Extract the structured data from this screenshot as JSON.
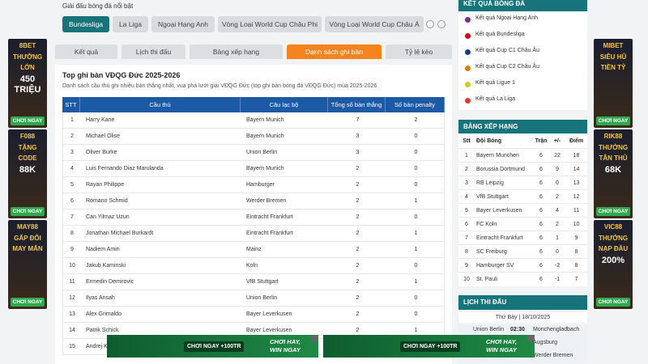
{
  "featured": {
    "label": "Giải đấu bóng đá nổi bật",
    "tabs": [
      "Bundesliga",
      "La Liga",
      "Ngoại Hạng Anh",
      "Vòng Loại World Cup Châu Phi",
      "Vòng Loại World Cup Châu Á"
    ]
  },
  "nav_tabs": [
    "Kết quả",
    "Lịch thi đấu",
    "Bảng xếp hạng",
    "Danh sách ghi bàn",
    "Tỷ lệ kèo"
  ],
  "scorers": {
    "title": "Top ghi bàn VĐQG Đức 2025-2026",
    "description": "Danh sách cầu thủ ghi nhiều bàn thắng nhất, vua phá lưới giải VĐQG Đức (top ghi bàn bóng đá VĐQG Đức) mùa 2025-2026",
    "columns": [
      "STT",
      "Cầu thủ",
      "Câu lạc bộ",
      "Tổng số bàn thắng",
      "Số bàn penalty"
    ],
    "rows": [
      [
        1,
        "Harry Kane",
        "Bayern Munich",
        7,
        2
      ],
      [
        2,
        "Michael Olise",
        "Bayern Munich",
        3,
        0
      ],
      [
        3,
        "Oliver Burke",
        "Union Berlin",
        3,
        0
      ],
      [
        4,
        "Luis Fernando Diaz Marulanda",
        "Bayern Munich",
        2,
        0
      ],
      [
        5,
        "Rayan Philippe",
        "Hamburger",
        2,
        0
      ],
      [
        6,
        "Romano Schmid",
        "Werder Bremen",
        2,
        1
      ],
      [
        7,
        "Can Yilmaz Uzun",
        "Eintracht Frankfurt",
        2,
        0
      ],
      [
        8,
        "Jonathan Michael Burkardt",
        "Eintracht Frankfurt",
        2,
        1
      ],
      [
        9,
        "Nadiem Amiri",
        "Mainz",
        2,
        1
      ],
      [
        10,
        "Jakub Kaminski",
        "Koln",
        2,
        0
      ],
      [
        11,
        "Ermedin Demirovic",
        "VfB Stuttgart",
        2,
        1
      ],
      [
        12,
        "Ilyas Ansah",
        "Union Berlin",
        2,
        0
      ],
      [
        13,
        "Alex Grimaldo",
        "Bayer Leverkusen",
        2,
        0
      ],
      [
        14,
        "Patrik Schick",
        "Bayer Leverkusen",
        2,
        1
      ],
      [
        15,
        "Andrej K"
      ]
    ]
  },
  "results": {
    "title": "KẾT QUẢ BÓNG ĐÁ",
    "links": [
      "Kết quả Ngoại Hạng Anh",
      "Kết quả Bundesliga",
      "Kết quả Cup C1 Châu Âu",
      "Kết quả Cup C2 Châu Âu",
      "Kết quả Ligue 1",
      "Kết quả La Liga"
    ]
  },
  "standings": {
    "title": "BẢNG XẾP HẠNG",
    "columns": [
      "Stt",
      "Đội Bóng",
      "Trận",
      "+/-",
      "Điểm"
    ],
    "rows": [
      [
        1,
        "Bayern Munchen",
        6,
        22,
        18
      ],
      [
        2,
        "Borussia Dortmund",
        6,
        9,
        14
      ],
      [
        3,
        "RB Leipzig",
        6,
        0,
        13
      ],
      [
        4,
        "VfB Stuttgart",
        6,
        2,
        12
      ],
      [
        5,
        "Bayer Leverkusen",
        6,
        4,
        11
      ],
      [
        6,
        "FC Koln",
        6,
        2,
        10
      ],
      [
        7,
        "Eintracht Frankfurt",
        6,
        1,
        9
      ],
      [
        8,
        "SC Freiburg",
        6,
        0,
        8
      ],
      [
        9,
        "Hamburger SV",
        6,
        -2,
        8
      ],
      [
        10,
        "St. Pauli",
        6,
        -1,
        7
      ]
    ]
  },
  "fixtures": {
    "title": "LỊCH THI ĐẤU",
    "date": "Thứ Bảy | 18/10/2025",
    "matches": [
      {
        "home": "Union Berlin",
        "time": "02:30",
        "away": "Monchengladbach"
      },
      {
        "away": "Augsburg"
      },
      {
        "away": "Werder Bremen"
      }
    ]
  },
  "ads": {
    "left": [
      {
        "brand": "8BET",
        "lines": [
          "THƯỞNG",
          "LỚN",
          "450",
          "TRIỆU"
        ],
        "cta": "CHƠI NGAY"
      },
      {
        "brand": "F088",
        "lines": [
          "TẶNG",
          "CODE",
          "88K"
        ],
        "cta": "CHƠI NGAY"
      },
      {
        "brand": "MAY88",
        "lines": [
          "GẤP ĐÔI",
          "MAY MẮN"
        ],
        "cta": "CHƠI NGAY"
      }
    ],
    "right": [
      {
        "brand": "MIBET",
        "lines": [
          "SIÊU HŨ",
          "TIỀN TỶ"
        ],
        "cta": "CHƠI NGAY"
      },
      {
        "brand": "RIK88",
        "lines": [
          "THƯỞNG",
          "TÂN THỦ",
          "68K"
        ],
        "cta": "CHƠI NGAY"
      },
      {
        "brand": "VIC88",
        "lines": [
          "THƯỞNG",
          "NẠP ĐẦU",
          "200%"
        ],
        "cta": "CHƠI NGAY"
      }
    ],
    "bottom": [
      {
        "cta": "CHƠI NGAY +100TR",
        "slogan": [
          "CHƠI HAY,",
          "WIN NGAY"
        ]
      },
      {
        "cta": "CHƠI NGAY +100TR",
        "slogan": [
          "CHƠI HAY,",
          "WIN NGAY"
        ]
      }
    ]
  }
}
